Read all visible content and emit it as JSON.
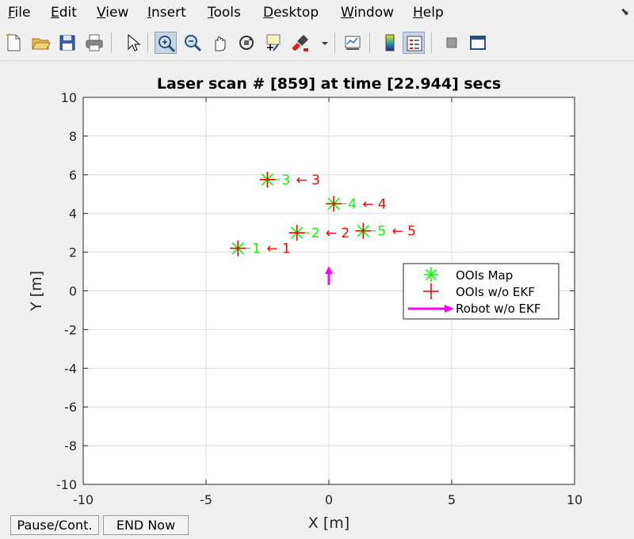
{
  "menu": {
    "items": [
      "File",
      "Edit",
      "View",
      "Insert",
      "Tools",
      "Desktop",
      "Window",
      "Help"
    ],
    "underline": [
      "F",
      "E",
      "V",
      "I",
      "T",
      "D",
      "W",
      "H"
    ],
    "arrow": "⬊"
  },
  "toolbar": {
    "icons": [
      "new-file-icon",
      "open-folder-icon",
      "save-icon",
      "print-icon",
      "pointer-icon",
      "zoom-in-icon",
      "zoom-out-icon",
      "pan-hand-icon",
      "rotate-3d-icon",
      "data-cursor-icon",
      "brush-icon",
      "dropdown-arrow-icon",
      "link-plot-icon",
      "colorbar-icon",
      "legend-icon",
      "hide-plot-tools-icon",
      "show-plot-tools-icon"
    ]
  },
  "buttons": {
    "pause": "Pause/Cont.",
    "end": "END Now"
  },
  "chart_data": {
    "type": "scatter",
    "title": "Laser scan # [859] at time [22.944] secs",
    "xlabel": "X [m]",
    "ylabel": "Y [m]",
    "xlim": [
      -10,
      10
    ],
    "ylim": [
      -10,
      10
    ],
    "xticks": [
      -10,
      -5,
      0,
      5,
      10
    ],
    "yticks": [
      10,
      8,
      6,
      4,
      2,
      0,
      -2,
      -4,
      -6,
      -8,
      -10
    ],
    "grid": true,
    "legend_position": "right",
    "colors": {
      "map": "#00ff00",
      "detected": "#ff0000",
      "robot": "#ff00ff"
    },
    "series": [
      {
        "name": "OOIs Map",
        "marker": "star",
        "points": [
          {
            "x": -3.7,
            "y": 2.2,
            "label": "1"
          },
          {
            "x": -1.3,
            "y": 3.0,
            "label": "2"
          },
          {
            "x": -2.5,
            "y": 5.75,
            "label": "3"
          },
          {
            "x": 0.2,
            "y": 4.5,
            "label": "4"
          },
          {
            "x": 1.4,
            "y": 3.1,
            "label": "5"
          }
        ]
      },
      {
        "name": "OOIs w/o EKF",
        "marker": "plus",
        "points": [
          {
            "x": -3.7,
            "y": 2.2,
            "label": "← 1"
          },
          {
            "x": -1.3,
            "y": 3.0,
            "label": "← 2"
          },
          {
            "x": -2.5,
            "y": 5.75,
            "label": "← 3"
          },
          {
            "x": 0.2,
            "y": 4.5,
            "label": "← 4"
          },
          {
            "x": 1.4,
            "y": 3.1,
            "label": "← 5"
          }
        ]
      },
      {
        "name": "Robot w/o EKF",
        "marker": "arrow",
        "from": {
          "x": 0.0,
          "y": 0.3
        },
        "to": {
          "x": 0.0,
          "y": 1.2
        }
      }
    ]
  }
}
